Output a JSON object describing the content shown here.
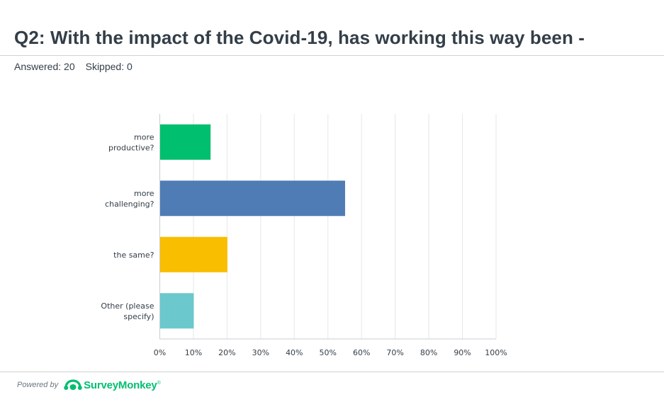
{
  "question": {
    "title": "Q2: With the impact of the Covid-19, has working this way been -",
    "answered_label": "Answered: 20",
    "skipped_label": "Skipped: 0"
  },
  "footer": {
    "powered_by": "Powered by",
    "brand": "SurveyMonkey",
    "brand_mark": "®",
    "logo_icon": "surveymonkey-logo-icon"
  },
  "chart_data": {
    "type": "bar",
    "orientation": "horizontal",
    "categories": [
      [
        "more",
        "productive?"
      ],
      [
        "more",
        "challenging?"
      ],
      [
        "the same?"
      ],
      [
        "Other (please",
        "specify)"
      ]
    ],
    "values": [
      15,
      55,
      20,
      10
    ],
    "colors": [
      "#00bf6f",
      "#507cb6",
      "#f9be00",
      "#6bc8cd"
    ],
    "x_ticks": [
      "0%",
      "10%",
      "20%",
      "30%",
      "40%",
      "50%",
      "60%",
      "70%",
      "80%",
      "90%",
      "100%"
    ],
    "xlim": [
      0,
      100
    ],
    "grid": true,
    "legend": "none"
  }
}
